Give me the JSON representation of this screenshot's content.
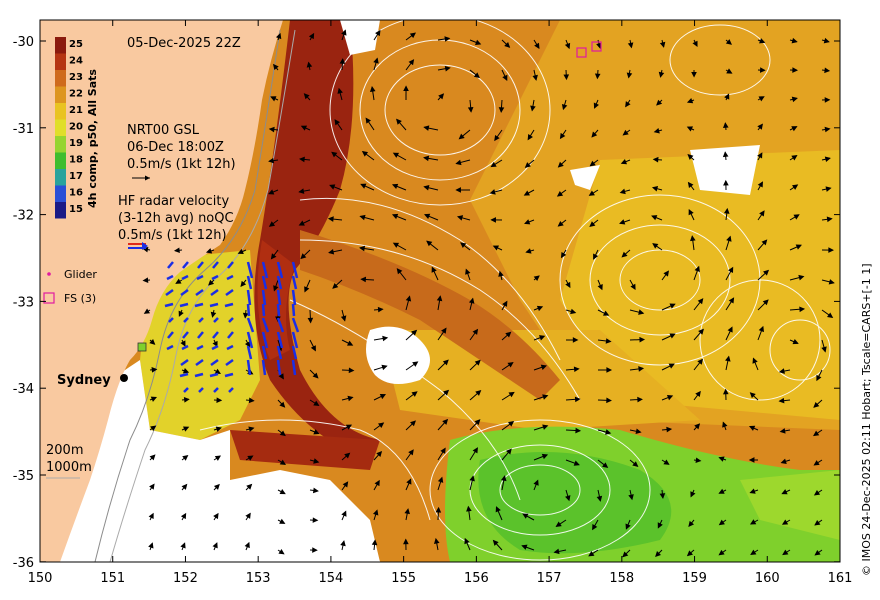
{
  "map": {
    "timestamp": "05-Dec-2025 22Z",
    "colorbar": {
      "title": "4h comp, p50, All Sats",
      "levels": [
        "25",
        "24",
        "23",
        "22",
        "21",
        "20",
        "19",
        "18",
        "17",
        "16",
        "15"
      ],
      "colors": [
        "#8b1a0d",
        "#b53512",
        "#cf6a1c",
        "#dd951f",
        "#e9c321",
        "#e0de2a",
        "#96d430",
        "#3fbd2e",
        "#2aa39c",
        "#2a4fd6",
        "#1a1a86"
      ]
    },
    "gsl": {
      "line1": "NRT00 GSL",
      "line2": "06-Dec 18:00Z",
      "line3": "0.5m/s (1kt 12h)"
    },
    "hf_radar": {
      "line1": "HF radar velocity",
      "line2": "(3-12h avg) noQC",
      "line3": "0.5m/s (1kt 12h)"
    },
    "legend": {
      "glider": "Glider",
      "fs": "FS (3)"
    },
    "city": "Sydney",
    "depth_200": "200m",
    "depth_1000": "1000m",
    "x_ticks": [
      "150",
      "151",
      "152",
      "153",
      "154",
      "155",
      "156",
      "157",
      "158",
      "159",
      "160",
      "161"
    ],
    "y_ticks": [
      "-30",
      "-31",
      "-32",
      "-33",
      "-34",
      "-35",
      "-36"
    ],
    "credit": "© IMOS 24-Dec-2025 02:11 Hobart; Tscale=CARS+[-1 1]",
    "colors": {
      "land": "#f9c9a0",
      "warm_core": "#9a2410",
      "warm_water": "#d9851f",
      "mid_water": "#e8b622",
      "cool_water": "#7ed02c",
      "radar": "#1a2ee6"
    }
  }
}
